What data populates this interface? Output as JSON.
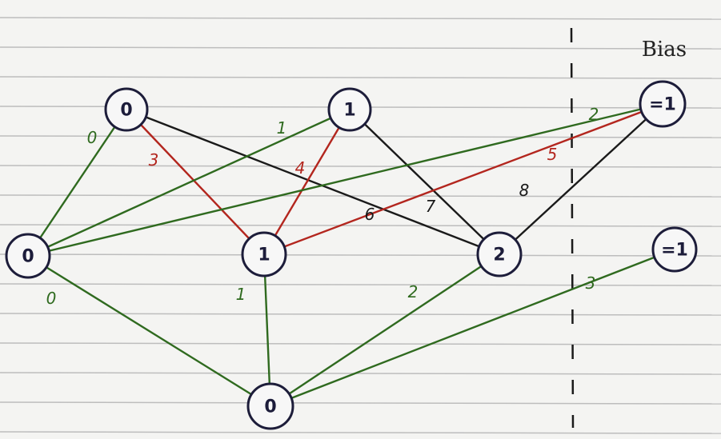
{
  "title": "Bias",
  "colors": {
    "paper": "#f4f4f2",
    "rule_line": "#bdbdbd",
    "node_stroke": "#1d1d3a",
    "black": "#1a1a1a",
    "green": "#2f6a1f",
    "red": "#b3261e"
  },
  "nodes": [
    {
      "id": "t0",
      "label": "0"
    },
    {
      "id": "t1",
      "label": "1"
    },
    {
      "id": "biasTop",
      "label": "=1"
    },
    {
      "id": "m0",
      "label": "0"
    },
    {
      "id": "m1",
      "label": "1"
    },
    {
      "id": "m2",
      "label": "2"
    },
    {
      "id": "biasMid",
      "label": "=1"
    },
    {
      "id": "b0",
      "label": "0"
    }
  ],
  "edges": [
    {
      "from": "t0",
      "to": "m0",
      "color": "green",
      "label": "0"
    },
    {
      "from": "t0",
      "to": "m1",
      "color": "red",
      "label": "3"
    },
    {
      "from": "t0",
      "to": "m2",
      "color": "black",
      "label": "6"
    },
    {
      "from": "t1",
      "to": "m0",
      "color": "green",
      "label": "1"
    },
    {
      "from": "t1",
      "to": "m1",
      "color": "red",
      "label": "4"
    },
    {
      "from": "t1",
      "to": "m2",
      "color": "black",
      "label": "7"
    },
    {
      "from": "biasTop",
      "to": "m0",
      "color": "green",
      "label": "2"
    },
    {
      "from": "biasTop",
      "to": "m1",
      "color": "red",
      "label": "5"
    },
    {
      "from": "biasTop",
      "to": "m2",
      "color": "black",
      "label": "8"
    },
    {
      "from": "m0",
      "to": "b0",
      "color": "green",
      "label": "0"
    },
    {
      "from": "m1",
      "to": "b0",
      "color": "green",
      "label": "1"
    },
    {
      "from": "m2",
      "to": "b0",
      "color": "green",
      "label": "2"
    },
    {
      "from": "biasMid",
      "to": "b0",
      "color": "green",
      "label": "3"
    }
  ]
}
